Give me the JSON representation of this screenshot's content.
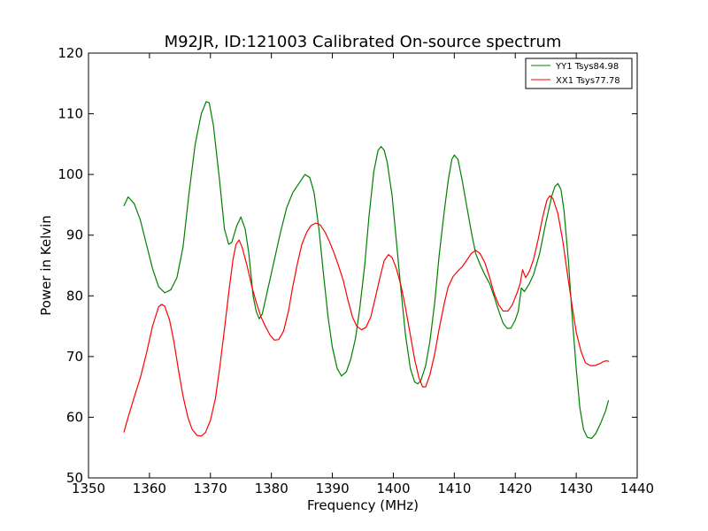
{
  "chart_data": {
    "type": "line",
    "title": "M92JR, ID:121003 Calibrated On-source spectrum",
    "xlabel": "Frequency (MHz)",
    "ylabel": "Power in Kelvin",
    "xlim": [
      1350,
      1440
    ],
    "ylim": [
      50,
      120
    ],
    "xticks": [
      "1350",
      "1360",
      "1370",
      "1380",
      "1390",
      "1400",
      "1410",
      "1420",
      "1430",
      "1440"
    ],
    "yticks": [
      "50",
      "60",
      "70",
      "80",
      "90",
      "100",
      "110",
      "120"
    ],
    "grid": false,
    "legend_position": "top-right",
    "series": [
      {
        "name": "YY1 Tsys84.98",
        "color": "#008000",
        "points": [
          [
            1355.8,
            94.8
          ],
          [
            1356.5,
            96.3
          ],
          [
            1357.5,
            95.2
          ],
          [
            1358.5,
            92.5
          ],
          [
            1359.5,
            88.5
          ],
          [
            1360.5,
            84.5
          ],
          [
            1361.5,
            81.5
          ],
          [
            1362.5,
            80.5
          ],
          [
            1363.5,
            81.0
          ],
          [
            1364.5,
            83.0
          ],
          [
            1365.5,
            88.0
          ],
          [
            1366.5,
            97.0
          ],
          [
            1367.5,
            105.0
          ],
          [
            1368.5,
            110.0
          ],
          [
            1369.3,
            112.0
          ],
          [
            1369.8,
            111.8
          ],
          [
            1370.5,
            108.0
          ],
          [
            1371.5,
            99.0
          ],
          [
            1372.3,
            91.0
          ],
          [
            1373.0,
            88.5
          ],
          [
            1373.5,
            88.8
          ],
          [
            1374.3,
            91.5
          ],
          [
            1375.0,
            93.0
          ],
          [
            1375.7,
            91.0
          ],
          [
            1376.3,
            87.0
          ],
          [
            1377.0,
            80.0
          ],
          [
            1377.5,
            77.5
          ],
          [
            1378.0,
            76.2
          ],
          [
            1378.5,
            77.0
          ],
          [
            1379.5,
            81.5
          ],
          [
            1380.5,
            86.0
          ],
          [
            1381.5,
            90.5
          ],
          [
            1382.5,
            94.5
          ],
          [
            1383.5,
            97.0
          ],
          [
            1384.5,
            98.5
          ],
          [
            1385.5,
            100.0
          ],
          [
            1386.3,
            99.5
          ],
          [
            1387.0,
            97.0
          ],
          [
            1387.8,
            91.0
          ],
          [
            1388.5,
            84.0
          ],
          [
            1389.3,
            76.5
          ],
          [
            1390.0,
            71.5
          ],
          [
            1390.8,
            68.0
          ],
          [
            1391.5,
            66.8
          ],
          [
            1392.3,
            67.5
          ],
          [
            1393.0,
            69.5
          ],
          [
            1393.8,
            73.0
          ],
          [
            1394.5,
            78.0
          ],
          [
            1395.3,
            85.0
          ],
          [
            1396.0,
            93.0
          ],
          [
            1396.8,
            100.5
          ],
          [
            1397.5,
            104.0
          ],
          [
            1398.0,
            104.6
          ],
          [
            1398.5,
            104.0
          ],
          [
            1399.0,
            102.0
          ],
          [
            1399.8,
            96.5
          ],
          [
            1400.5,
            89.0
          ],
          [
            1401.3,
            80.5
          ],
          [
            1402.0,
            73.5
          ],
          [
            1402.8,
            68.0
          ],
          [
            1403.5,
            65.8
          ],
          [
            1404.0,
            65.5
          ],
          [
            1404.5,
            66.0
          ],
          [
            1405.3,
            68.5
          ],
          [
            1406.0,
            72.5
          ],
          [
            1406.8,
            79.0
          ],
          [
            1407.5,
            86.5
          ],
          [
            1408.3,
            93.5
          ],
          [
            1409.0,
            99.0
          ],
          [
            1409.6,
            102.5
          ],
          [
            1410.0,
            103.2
          ],
          [
            1410.6,
            102.5
          ],
          [
            1411.3,
            99.0
          ],
          [
            1412.0,
            95.0
          ],
          [
            1412.8,
            90.5
          ],
          [
            1413.5,
            87.0
          ],
          [
            1414.3,
            85.0
          ],
          [
            1415.0,
            83.5
          ],
          [
            1415.8,
            82.0
          ],
          [
            1416.5,
            80.0
          ],
          [
            1417.3,
            77.5
          ],
          [
            1418.0,
            75.5
          ],
          [
            1418.7,
            74.6
          ],
          [
            1419.3,
            74.7
          ],
          [
            1420.0,
            76.0
          ],
          [
            1420.5,
            77.5
          ],
          [
            1421.0,
            81.3
          ],
          [
            1421.5,
            80.7
          ],
          [
            1422.3,
            82.0
          ],
          [
            1423.0,
            83.5
          ],
          [
            1424.0,
            87.0
          ],
          [
            1425.0,
            92.0
          ],
          [
            1426.0,
            96.5
          ],
          [
            1426.5,
            98.0
          ],
          [
            1427.0,
            98.5
          ],
          [
            1427.5,
            97.5
          ],
          [
            1428.0,
            94.0
          ],
          [
            1428.7,
            86.0
          ],
          [
            1429.3,
            77.0
          ],
          [
            1430.0,
            68.0
          ],
          [
            1430.6,
            61.5
          ],
          [
            1431.2,
            58.0
          ],
          [
            1431.8,
            56.7
          ],
          [
            1432.5,
            56.5
          ],
          [
            1433.2,
            57.3
          ],
          [
            1434.0,
            59.0
          ],
          [
            1434.8,
            61.0
          ],
          [
            1435.3,
            62.8
          ]
        ]
      },
      {
        "name": "XX1 Tsys77.78",
        "color": "#ff0000",
        "points": [
          [
            1355.8,
            57.5
          ],
          [
            1356.5,
            60.0
          ],
          [
            1357.5,
            63.3
          ],
          [
            1358.5,
            66.5
          ],
          [
            1359.5,
            70.5
          ],
          [
            1360.5,
            75.0
          ],
          [
            1361.5,
            78.2
          ],
          [
            1362.0,
            78.6
          ],
          [
            1362.5,
            78.3
          ],
          [
            1363.3,
            76.0
          ],
          [
            1364.0,
            72.5
          ],
          [
            1364.8,
            67.5
          ],
          [
            1365.5,
            63.5
          ],
          [
            1366.3,
            60.0
          ],
          [
            1367.0,
            58.0
          ],
          [
            1367.8,
            57.0
          ],
          [
            1368.5,
            56.9
          ],
          [
            1369.2,
            57.5
          ],
          [
            1370.0,
            59.5
          ],
          [
            1370.8,
            63.0
          ],
          [
            1371.5,
            68.0
          ],
          [
            1372.3,
            74.5
          ],
          [
            1373.0,
            80.5
          ],
          [
            1373.7,
            86.0
          ],
          [
            1374.2,
            88.5
          ],
          [
            1374.7,
            89.2
          ],
          [
            1375.2,
            88.0
          ],
          [
            1376.0,
            85.0
          ],
          [
            1376.8,
            81.5
          ],
          [
            1377.5,
            79.0
          ],
          [
            1378.3,
            76.5
          ],
          [
            1379.0,
            75.0
          ],
          [
            1379.8,
            73.5
          ],
          [
            1380.5,
            72.7
          ],
          [
            1381.2,
            72.8
          ],
          [
            1382.0,
            74.2
          ],
          [
            1382.8,
            77.5
          ],
          [
            1383.5,
            81.5
          ],
          [
            1384.3,
            85.5
          ],
          [
            1385.0,
            88.5
          ],
          [
            1385.8,
            90.5
          ],
          [
            1386.5,
            91.6
          ],
          [
            1387.3,
            92.0
          ],
          [
            1388.0,
            91.7
          ],
          [
            1388.8,
            90.5
          ],
          [
            1389.5,
            89.0
          ],
          [
            1390.3,
            87.0
          ],
          [
            1391.0,
            85.0
          ],
          [
            1391.8,
            82.5
          ],
          [
            1392.5,
            79.5
          ],
          [
            1393.3,
            76.5
          ],
          [
            1394.0,
            75.0
          ],
          [
            1394.8,
            74.4
          ],
          [
            1395.5,
            74.8
          ],
          [
            1396.3,
            76.5
          ],
          [
            1397.0,
            79.5
          ],
          [
            1397.8,
            83.0
          ],
          [
            1398.5,
            85.8
          ],
          [
            1399.2,
            86.8
          ],
          [
            1399.8,
            86.3
          ],
          [
            1400.5,
            84.5
          ],
          [
            1401.3,
            81.5
          ],
          [
            1402.0,
            78.0
          ],
          [
            1402.8,
            73.5
          ],
          [
            1403.5,
            69.5
          ],
          [
            1404.2,
            66.5
          ],
          [
            1404.8,
            65.0
          ],
          [
            1405.3,
            65.0
          ],
          [
            1406.0,
            67.0
          ],
          [
            1406.8,
            70.5
          ],
          [
            1407.5,
            74.5
          ],
          [
            1408.3,
            78.5
          ],
          [
            1409.0,
            81.5
          ],
          [
            1409.8,
            83.2
          ],
          [
            1410.5,
            84.0
          ],
          [
            1411.3,
            84.8
          ],
          [
            1412.0,
            85.8
          ],
          [
            1412.8,
            87.0
          ],
          [
            1413.5,
            87.5
          ],
          [
            1414.2,
            87.0
          ],
          [
            1415.0,
            85.5
          ],
          [
            1415.8,
            83.0
          ],
          [
            1416.5,
            80.5
          ],
          [
            1417.3,
            78.5
          ],
          [
            1418.0,
            77.5
          ],
          [
            1418.8,
            77.5
          ],
          [
            1419.5,
            78.5
          ],
          [
            1420.3,
            80.5
          ],
          [
            1420.8,
            82.0
          ],
          [
            1421.2,
            84.3
          ],
          [
            1421.7,
            83.0
          ],
          [
            1422.3,
            84.0
          ],
          [
            1423.0,
            86.0
          ],
          [
            1423.8,
            89.5
          ],
          [
            1424.5,
            93.0
          ],
          [
            1425.2,
            95.8
          ],
          [
            1425.7,
            96.5
          ],
          [
            1426.2,
            96.0
          ],
          [
            1427.0,
            93.5
          ],
          [
            1427.8,
            89.0
          ],
          [
            1428.5,
            84.0
          ],
          [
            1429.3,
            78.5
          ],
          [
            1430.0,
            74.0
          ],
          [
            1430.8,
            70.8
          ],
          [
            1431.5,
            69.0
          ],
          [
            1432.3,
            68.5
          ],
          [
            1433.0,
            68.5
          ],
          [
            1433.8,
            68.8
          ],
          [
            1434.5,
            69.2
          ],
          [
            1435.0,
            69.3
          ],
          [
            1435.4,
            69.2
          ]
        ]
      }
    ]
  }
}
